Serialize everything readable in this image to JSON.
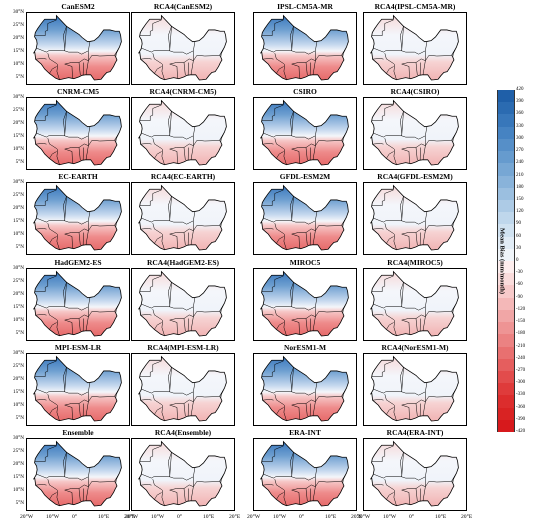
{
  "panel_titles": [
    "CanESM2",
    "RCA4(CanESM2)",
    "IPSL-CM5A-MR",
    "RCA4(IPSL-CM5A-MR)",
    "CNRM-CM5",
    "RCA4(CNRM-CM5)",
    "CSIRO",
    "RCA4(CSIRO)",
    "EC-EARTH",
    "RCA4(EC-EARTH)",
    "GFDL-ESM2M",
    "RCA4(GFDL-ESM2M)",
    "HadGEM2-ES",
    "RCA4(HadGEM2-ES)",
    "MIROC5",
    "RCA4(MIROC5)",
    "MPI-ESM-LR",
    "RCA4(MPI-ESM-LR)",
    "NorESM1-M",
    "RCA4(NorESM1-M)",
    "Ensemble",
    "RCA4(Ensemble)",
    "ERA-INT",
    "RCA4(ERA-INT)"
  ],
  "panel_kind": [
    "gcm",
    "rcm",
    "gcm",
    "rcm",
    "gcm",
    "rcm",
    "gcm",
    "rcm",
    "gcm",
    "rcm",
    "gcm",
    "rcm",
    "gcm",
    "rcm",
    "gcm",
    "rcm",
    "gcm",
    "rcm",
    "gcm",
    "rcm",
    "gcm",
    "rcm",
    "gcm",
    "rcm"
  ],
  "lat_labels": [
    "30°N",
    "25°N",
    "20°N",
    "15°N",
    "10°N",
    "5°N"
  ],
  "lon_labels": [
    "20°W",
    "10°W",
    "0°",
    "10°E",
    "20°E"
  ],
  "colorbar": {
    "label": "Mean Bias (mm/month)",
    "min": -420,
    "max": 420,
    "ticks": [
      "420",
      "390",
      "360",
      "330",
      "300",
      "270",
      "240",
      "210",
      "180",
      "150",
      "120",
      "90",
      "60",
      "30",
      "0",
      "-30",
      "-60",
      "-90",
      "-120",
      "-150",
      "-180",
      "-210",
      "-240",
      "-270",
      "-300",
      "-330",
      "-360",
      "-390",
      "-420"
    ],
    "top_color": "#1f5fa8",
    "bottom_color": "#d7191c"
  }
}
